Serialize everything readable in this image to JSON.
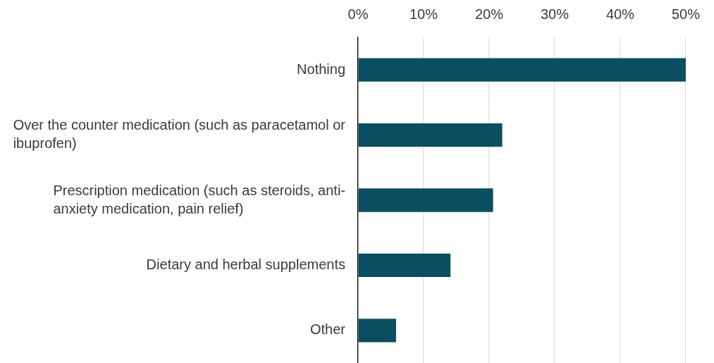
{
  "chart_data": {
    "type": "bar",
    "orientation": "horizontal",
    "categories": [
      "Nothing",
      "Over the counter medication (such as paracetamol or ibuprofen)",
      "Prescription medication (such as steroids, anti-anxiety medication, pain relief)",
      "Dietary and herbal supplements",
      "Other"
    ],
    "values": [
      50,
      22,
      20.6,
      14.1,
      5.8
    ],
    "color": "#0b4e61",
    "xlim": [
      0,
      50
    ],
    "xticks": [
      {
        "value": 0,
        "label": "0%"
      },
      {
        "value": 10,
        "label": "10%"
      },
      {
        "value": 20,
        "label": "20%"
      },
      {
        "value": 30,
        "label": "30%"
      },
      {
        "value": 40,
        "label": "40%"
      },
      {
        "value": 50,
        "label": "50%"
      }
    ],
    "grid": "x"
  }
}
